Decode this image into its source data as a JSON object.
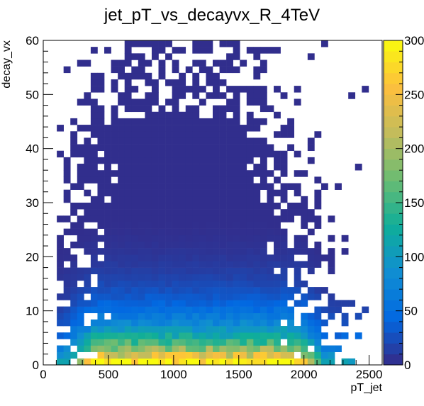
{
  "chart_data": {
    "type": "heatmap",
    "title": "jet_pT_vs_decayvx_R_4TeV",
    "xlabel": "pT_jet",
    "ylabel": "decay_vx",
    "xlim": [
      0,
      2600
    ],
    "ylim": [
      0,
      60
    ],
    "x_ticks": [
      "0",
      "500",
      "1000",
      "1500",
      "2000",
      "2500"
    ],
    "y_ticks": [
      "0",
      "10",
      "20",
      "30",
      "40",
      "50",
      "60"
    ],
    "z_ticks": [
      "0",
      "50",
      "100",
      "150",
      "200",
      "250",
      "300"
    ],
    "zlim": [
      0,
      300
    ],
    "bin_width_x": 52,
    "bin_width_y": 1.2,
    "colormap": [
      "#352a87",
      "#0268e1",
      "#108ed2",
      "#0fae99",
      "#6bbc72",
      "#c3bc5c",
      "#fdbf3d",
      "#f9fb0e"
    ],
    "density_model": {
      "core_x_range": [
        380,
        1900
      ],
      "core_peak_value": 290,
      "note_values": "counts per bin, highest near y=0 across x=400-1700"
    }
  }
}
